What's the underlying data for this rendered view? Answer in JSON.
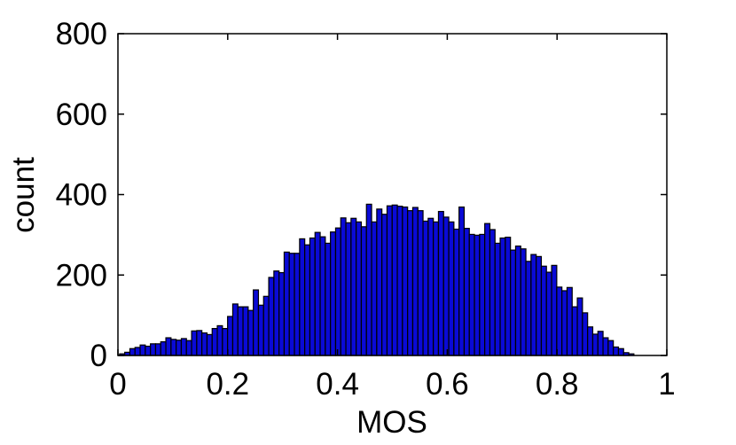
{
  "chart_data": {
    "type": "bar",
    "subtype": "histogram",
    "title": "",
    "xlabel": "MOS",
    "ylabel": "count",
    "xlim": [
      0,
      1
    ],
    "ylim": [
      0,
      800
    ],
    "xticks": [
      "0",
      "0.2",
      "0.4",
      "0.6",
      "0.8",
      "1"
    ],
    "yticks": [
      "0",
      "200",
      "400",
      "600",
      "800"
    ],
    "grid": false,
    "legend": "none",
    "bar_color": "#0a0ad6",
    "edge_color": "#000000",
    "bin_range": [
      0.003,
      0.94
    ],
    "bin_count": 100,
    "values": [
      4,
      8,
      17,
      20,
      26,
      23,
      29,
      29,
      34,
      44,
      40,
      38,
      42,
      37,
      61,
      62,
      56,
      52,
      67,
      74,
      67,
      97,
      128,
      121,
      121,
      112,
      163,
      125,
      147,
      194,
      210,
      206,
      257,
      254,
      254,
      290,
      275,
      292,
      306,
      295,
      279,
      307,
      317,
      342,
      330,
      341,
      332,
      320,
      376,
      332,
      364,
      351,
      372,
      374,
      371,
      369,
      360,
      368,
      360,
      334,
      341,
      332,
      358,
      344,
      332,
      314,
      369,
      316,
      301,
      299,
      301,
      328,
      313,
      279,
      292,
      294,
      262,
      272,
      265,
      234,
      251,
      246,
      222,
      207,
      224,
      170,
      161,
      169,
      121,
      143,
      106,
      71,
      53,
      60,
      44,
      37,
      21,
      17,
      7,
      4
    ]
  }
}
